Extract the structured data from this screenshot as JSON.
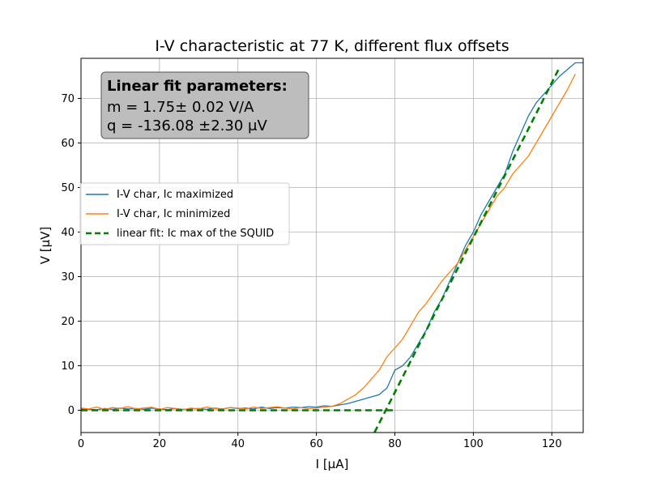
{
  "chart_data": {
    "type": "line",
    "title": "I-V characteristic at 77 K, different flux offsets",
    "xlabel": "I [μA]",
    "ylabel": "V [μV]",
    "xlim": [
      0,
      128
    ],
    "ylim": [
      -5,
      79
    ],
    "xticks": [
      "0",
      "20",
      "40",
      "60",
      "80",
      "100",
      "120"
    ],
    "yticks": [
      "0",
      "10",
      "20",
      "30",
      "40",
      "50",
      "60",
      "70"
    ],
    "grid": true,
    "legend_position": "center-left",
    "annotation": {
      "heading": "Linear fit parameters:",
      "line1": "m = 1.75± 0.02 V/A",
      "line2": "q = -136.08 ±2.30 μV"
    },
    "colors": {
      "maximized": "#1f77b4",
      "minimized": "#ff7f0e",
      "fit": "#008000"
    },
    "series": [
      {
        "name": "I-V char, Ic maximized",
        "color": "#1f77b4",
        "x": [
          0,
          2,
          4,
          6,
          8,
          10,
          12,
          14,
          16,
          18,
          20,
          22,
          24,
          26,
          28,
          30,
          32,
          34,
          36,
          38,
          40,
          42,
          44,
          46,
          48,
          50,
          52,
          54,
          56,
          58,
          60,
          62,
          64,
          66,
          68,
          70,
          72,
          74,
          76,
          78,
          80,
          82,
          84,
          86,
          88,
          90,
          92,
          94,
          96,
          98,
          100,
          102,
          104,
          106,
          108,
          110,
          112,
          114,
          116,
          118,
          120,
          122,
          124,
          126,
          128
        ],
        "y": [
          0.3,
          0.2,
          0.1,
          0.4,
          0.2,
          0.5,
          0.3,
          0.4,
          0.2,
          0.5,
          0.3,
          0.1,
          0.4,
          0.2,
          0.3,
          0.4,
          0.2,
          0.5,
          0.3,
          0.6,
          0.4,
          0.5,
          0.3,
          0.7,
          0.4,
          0.6,
          0.5,
          0.7,
          0.6,
          0.8,
          0.7,
          1.0,
          0.9,
          1.2,
          1.5,
          2.0,
          2.5,
          3.0,
          3.5,
          5.0,
          9.0,
          10.0,
          12.0,
          15.0,
          18.0,
          22.0,
          25.0,
          29.0,
          33.0,
          37.0,
          40.0,
          44.0,
          47.0,
          50.0,
          53.0,
          58.0,
          62.0,
          66.0,
          69.0,
          71.0,
          73.0,
          75.0,
          76.5,
          78.0,
          78.0
        ]
      },
      {
        "name": "I-V char, Ic minimized",
        "color": "#ff7f0e",
        "x": [
          0,
          2,
          4,
          6,
          8,
          10,
          12,
          14,
          16,
          18,
          20,
          22,
          24,
          26,
          28,
          30,
          32,
          34,
          36,
          38,
          40,
          42,
          44,
          46,
          48,
          50,
          52,
          54,
          56,
          58,
          60,
          62,
          64,
          66,
          68,
          70,
          72,
          74,
          76,
          78,
          80,
          82,
          84,
          86,
          88,
          90,
          92,
          94,
          96,
          98,
          100,
          102,
          104,
          106,
          108,
          110,
          112,
          114,
          116,
          118,
          120,
          122,
          124,
          126
        ],
        "y": [
          0.5,
          0.3,
          0.7,
          0.2,
          0.6,
          0.4,
          0.8,
          0.3,
          0.5,
          0.7,
          0.2,
          0.6,
          0.4,
          0.1,
          0.5,
          0.3,
          0.7,
          0.4,
          0.2,
          0.6,
          0.5,
          0.3,
          0.7,
          0.4,
          0.6,
          0.8,
          0.5,
          0.3,
          0.6,
          0.4,
          0.5,
          0.7,
          0.9,
          1.5,
          2.5,
          3.5,
          5.0,
          7.0,
          9.0,
          12.0,
          14.0,
          16.0,
          19.0,
          22.0,
          24.0,
          26.5,
          29.0,
          31.0,
          33.0,
          36.0,
          39.0,
          42.0,
          45.0,
          48.0,
          50.0,
          53.0,
          55.0,
          57.0,
          60.0,
          63.0,
          66.0,
          69.0,
          72.0,
          75.5
        ]
      },
      {
        "name": "linear fit: Ic max of the SQUID",
        "color": "#008000",
        "x": [
          0,
          80,
          74.8,
          122
        ],
        "y": [
          0,
          0,
          -5,
          77
        ]
      }
    ]
  }
}
